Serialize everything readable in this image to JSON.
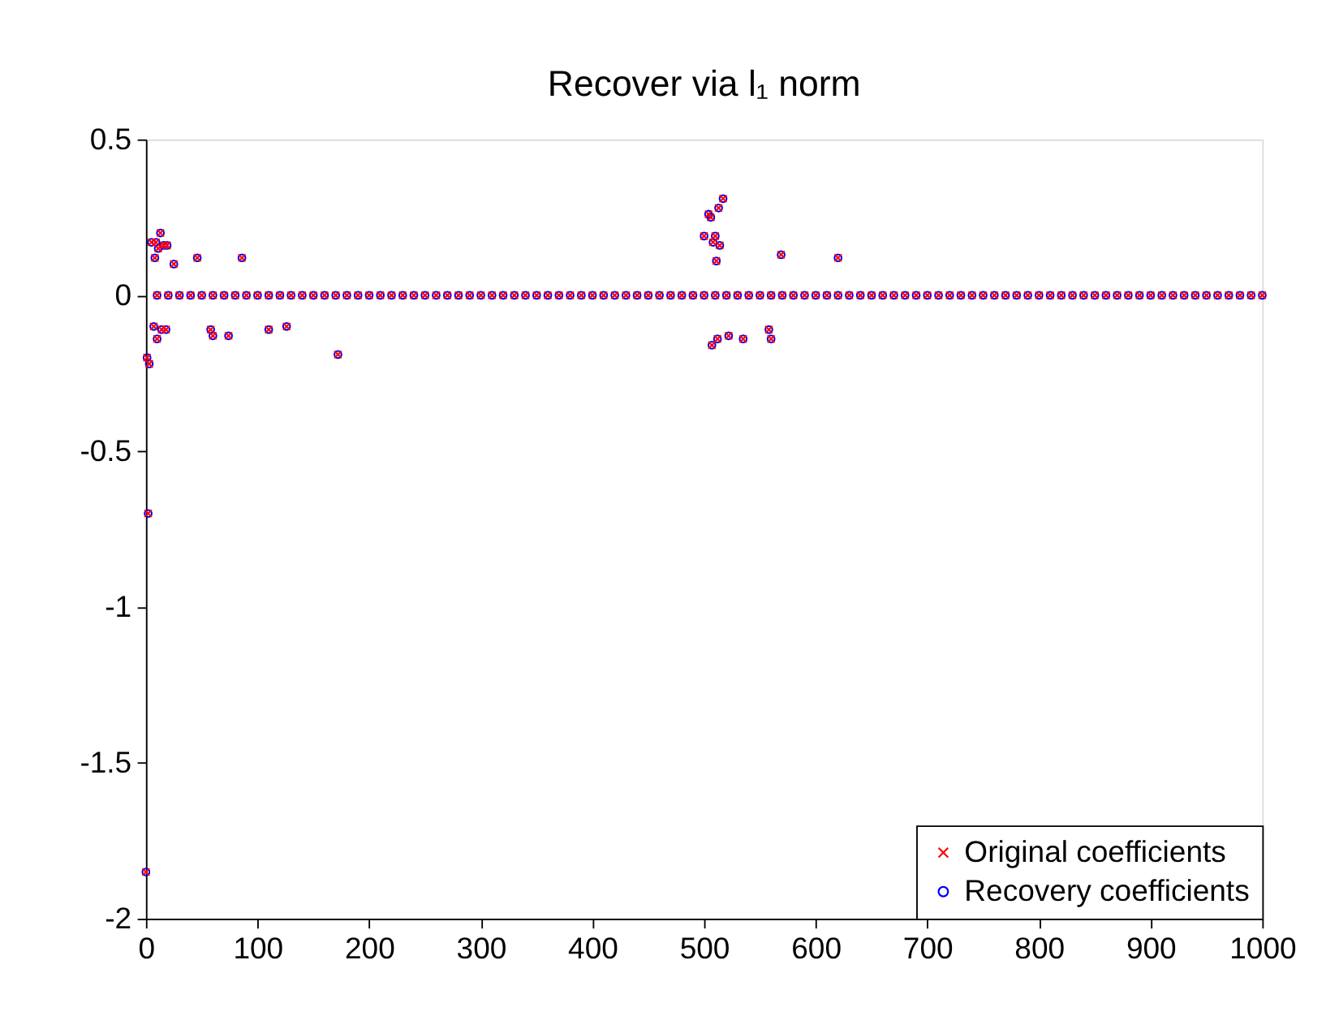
{
  "chart_data": {
    "type": "scatter",
    "title": "Recover via l₁ norm",
    "x": [
      0,
      1,
      2,
      3,
      5,
      7,
      8,
      9,
      10,
      11,
      13,
      14,
      16,
      18,
      19,
      25,
      46,
      58,
      60,
      74,
      86,
      110,
      126,
      172,
      500,
      504,
      506,
      507,
      508,
      510,
      511,
      512,
      513,
      514,
      517,
      522,
      535,
      558,
      560,
      569,
      620,
      10,
      20,
      30,
      40,
      50,
      60,
      70,
      80,
      90,
      100,
      110,
      120,
      130,
      140,
      150,
      160,
      170,
      180,
      190,
      200,
      210,
      220,
      230,
      240,
      250,
      260,
      270,
      280,
      290,
      300,
      310,
      320,
      330,
      340,
      350,
      360,
      370,
      380,
      390,
      400,
      410,
      420,
      430,
      440,
      450,
      460,
      470,
      480,
      490,
      500,
      510,
      520,
      530,
      540,
      550,
      560,
      570,
      580,
      590,
      600,
      610,
      620,
      630,
      640,
      650,
      660,
      670,
      680,
      690,
      700,
      710,
      720,
      730,
      740,
      750,
      760,
      770,
      780,
      790,
      800,
      810,
      820,
      830,
      840,
      850,
      860,
      870,
      880,
      890,
      900,
      910,
      920,
      930,
      940,
      950,
      960,
      970,
      980,
      990,
      1000
    ],
    "series": [
      {
        "name": "Original coefficients",
        "color": "#ff0000",
        "marker": "cross",
        "values": [
          -1.85,
          -0.2,
          -0.7,
          -0.22,
          0.17,
          -0.1,
          0.12,
          0.17,
          -0.14,
          0.15,
          0.2,
          -0.11,
          0.16,
          -0.11,
          0.16,
          0.1,
          0.12,
          -0.11,
          -0.13,
          -0.13,
          0.12,
          -0.11,
          -0.1,
          -0.19,
          0.19,
          0.26,
          0.25,
          -0.16,
          0.17,
          0.19,
          0.11,
          -0.14,
          0.28,
          0.16,
          0.31,
          -0.13,
          -0.14,
          -0.11,
          -0.14,
          0.13,
          0.12,
          0,
          0,
          0,
          0,
          0,
          0,
          0,
          0,
          0,
          0,
          0,
          0,
          0,
          0,
          0,
          0,
          0,
          0,
          0,
          0,
          0,
          0,
          0,
          0,
          0,
          0,
          0,
          0,
          0,
          0,
          0,
          0,
          0,
          0,
          0,
          0,
          0,
          0,
          0,
          0,
          0,
          0,
          0,
          0,
          0,
          0,
          0,
          0,
          0,
          0,
          0,
          0,
          0,
          0,
          0,
          0,
          0,
          0,
          0,
          0,
          0,
          0,
          0,
          0,
          0,
          0,
          0,
          0,
          0,
          0,
          0,
          0,
          0,
          0,
          0,
          0,
          0,
          0,
          0,
          0,
          0,
          0,
          0,
          0,
          0,
          0,
          0,
          0,
          0,
          0,
          0,
          0,
          0,
          0,
          0,
          0,
          0,
          0,
          0,
          0
        ]
      },
      {
        "name": "Recovery coefficients",
        "color": "#0000ff",
        "marker": "circle",
        "values": [
          -1.85,
          -0.2,
          -0.7,
          -0.22,
          0.17,
          -0.1,
          0.12,
          0.17,
          -0.14,
          0.15,
          0.2,
          -0.11,
          0.16,
          -0.11,
          0.16,
          0.1,
          0.12,
          -0.11,
          -0.13,
          -0.13,
          0.12,
          -0.11,
          -0.1,
          -0.19,
          0.19,
          0.26,
          0.25,
          -0.16,
          0.17,
          0.19,
          0.11,
          -0.14,
          0.28,
          0.16,
          0.31,
          -0.13,
          -0.14,
          -0.11,
          -0.14,
          0.13,
          0.12,
          0,
          0,
          0,
          0,
          0,
          0,
          0,
          0,
          0,
          0,
          0,
          0,
          0,
          0,
          0,
          0,
          0,
          0,
          0,
          0,
          0,
          0,
          0,
          0,
          0,
          0,
          0,
          0,
          0,
          0,
          0,
          0,
          0,
          0,
          0,
          0,
          0,
          0,
          0,
          0,
          0,
          0,
          0,
          0,
          0,
          0,
          0,
          0,
          0,
          0,
          0,
          0,
          0,
          0,
          0,
          0,
          0,
          0,
          0,
          0,
          0,
          0,
          0,
          0,
          0,
          0,
          0,
          0,
          0,
          0,
          0,
          0,
          0,
          0,
          0,
          0,
          0,
          0,
          0,
          0,
          0,
          0,
          0,
          0,
          0,
          0,
          0,
          0,
          0,
          0,
          0,
          0,
          0,
          0,
          0,
          0,
          0,
          0,
          0,
          0
        ]
      }
    ],
    "xlim": [
      0,
      1000
    ],
    "xticks": [
      0,
      100,
      200,
      300,
      400,
      500,
      600,
      700,
      800,
      900,
      1000
    ],
    "ylim": [
      -2,
      0.5
    ],
    "yticks": [
      -2,
      -1.5,
      -1,
      -0.5,
      0,
      0.5
    ],
    "grid": false,
    "legend": "bottom right"
  }
}
